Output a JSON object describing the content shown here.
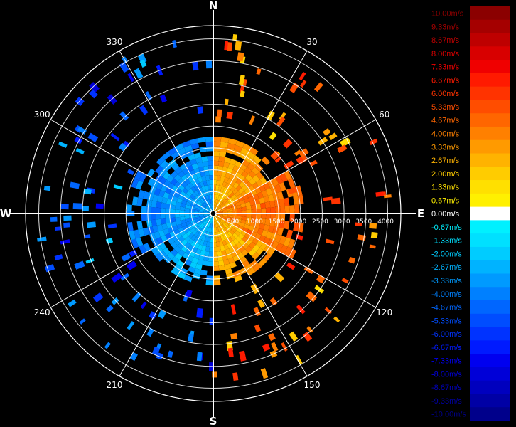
{
  "chart_data": {
    "type": "heatmap",
    "subtype": "polar radar radial-velocity display",
    "directions": [
      {
        "id": "N",
        "label": "N",
        "angle": 0
      },
      {
        "id": "E",
        "label": "E",
        "angle": 90
      },
      {
        "id": "S",
        "label": "S",
        "angle": 180
      },
      {
        "id": "W",
        "label": "W",
        "angle": 270
      }
    ],
    "degree_labels": [
      {
        "angle": 30,
        "label": "30"
      },
      {
        "angle": 60,
        "label": "60"
      },
      {
        "angle": 120,
        "label": "120"
      },
      {
        "angle": 150,
        "label": "150"
      },
      {
        "angle": 210,
        "label": "210"
      },
      {
        "angle": 240,
        "label": "240"
      },
      {
        "angle": 300,
        "label": "300"
      },
      {
        "angle": 330,
        "label": "330"
      }
    ],
    "range_labels": [
      {
        "value": 500,
        "label": "500"
      },
      {
        "value": 1000,
        "label": "1000"
      },
      {
        "value": 1500,
        "label": "1500"
      },
      {
        "value": 2000,
        "label": "2000"
      },
      {
        "value": 2500,
        "label": "2500"
      },
      {
        "value": 3000,
        "label": "3000"
      },
      {
        "value": 3500,
        "label": "3500"
      },
      {
        "value": 4000,
        "label": "4000"
      }
    ],
    "range_max": 4000,
    "velocity_range": [
      -10.0,
      10.0
    ],
    "colorbar": [
      {
        "label": "10.00m/s",
        "value": 10.0,
        "color": "#8b0000"
      },
      {
        "label": "9.33m/s",
        "value": 9.33,
        "color": "#a50000"
      },
      {
        "label": "8.67m/s",
        "value": 8.67,
        "color": "#be0000"
      },
      {
        "label": "8.00m/s",
        "value": 8.0,
        "color": "#d80000"
      },
      {
        "label": "7.33m/s",
        "value": 7.33,
        "color": "#f00000"
      },
      {
        "label": "6.67m/s",
        "value": 6.67,
        "color": "#ff1a00"
      },
      {
        "label": "6.00m/s",
        "value": 6.0,
        "color": "#ff3300"
      },
      {
        "label": "5.33m/s",
        "value": 5.33,
        "color": "#ff4d00"
      },
      {
        "label": "4.67m/s",
        "value": 4.67,
        "color": "#ff6600"
      },
      {
        "label": "4.00m/s",
        "value": 4.0,
        "color": "#ff8000"
      },
      {
        "label": "3.33m/s",
        "value": 3.33,
        "color": "#ff9a00"
      },
      {
        "label": "2.67m/s",
        "value": 2.67,
        "color": "#ffb300"
      },
      {
        "label": "2.00m/s",
        "value": 2.0,
        "color": "#ffcc00"
      },
      {
        "label": "1.33m/s",
        "value": 1.33,
        "color": "#ffe000"
      },
      {
        "label": "0.67m/s",
        "value": 0.67,
        "color": "#fff000"
      },
      {
        "label": "0.00m/s",
        "value": 0.0,
        "color": "#ffffff"
      },
      {
        "label": "-0.67m/s",
        "value": -0.67,
        "color": "#00f0ff"
      },
      {
        "label": "-1.33m/s",
        "value": -1.33,
        "color": "#00e0ff"
      },
      {
        "label": "-2.00m/s",
        "value": -2.0,
        "color": "#00ccff"
      },
      {
        "label": "-2.67m/s",
        "value": -2.67,
        "color": "#00b3ff"
      },
      {
        "label": "-3.33m/s",
        "value": -3.33,
        "color": "#009aff"
      },
      {
        "label": "-4.00m/s",
        "value": -4.0,
        "color": "#0080ff"
      },
      {
        "label": "-4.67m/s",
        "value": -4.67,
        "color": "#0066ff"
      },
      {
        "label": "-5.33m/s",
        "value": -5.33,
        "color": "#004dff"
      },
      {
        "label": "-6.00m/s",
        "value": -6.0,
        "color": "#0033ff"
      },
      {
        "label": "-6.67m/s",
        "value": -6.67,
        "color": "#001aff"
      },
      {
        "label": "-7.33m/s",
        "value": -7.33,
        "color": "#0000f0"
      },
      {
        "label": "-8.00m/s",
        "value": -8.0,
        "color": "#0000d8"
      },
      {
        "label": "-8.67m/s",
        "value": -8.67,
        "color": "#0000be"
      },
      {
        "label": "-9.33m/s",
        "value": -9.33,
        "color": "#0000a5"
      },
      {
        "label": "-10.00m/s",
        "value": -10.0,
        "color": "#00008b"
      }
    ],
    "velocity_field": [
      {
        "az_from": 300,
        "az_to": 360,
        "range_from": 0,
        "range_to": 1700,
        "velocity": -3.0
      },
      {
        "az_from": 240,
        "az_to": 300,
        "range_from": 0,
        "range_to": 1900,
        "velocity": -3.2
      },
      {
        "az_from": 180,
        "az_to": 240,
        "range_from": 0,
        "range_to": 1600,
        "velocity": -2.3
      },
      {
        "az_from": 0,
        "az_to": 60,
        "range_from": 0,
        "range_to": 1700,
        "velocity": 2.7
      },
      {
        "az_from": 60,
        "az_to": 120,
        "range_from": 0,
        "range_to": 2000,
        "velocity": 3.8
      },
      {
        "az_from": 120,
        "az_to": 180,
        "range_from": 0,
        "range_to": 1600,
        "velocity": 2.5
      }
    ],
    "grid": true
  }
}
